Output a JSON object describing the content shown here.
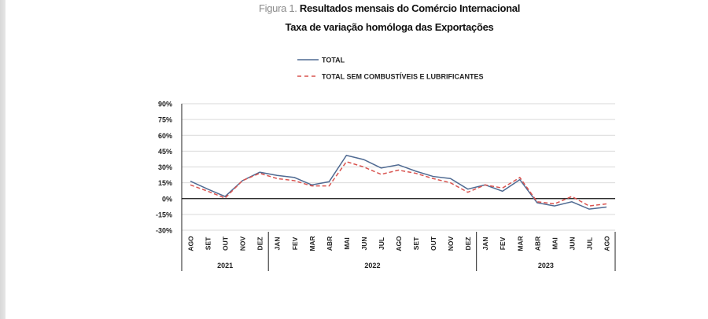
{
  "chart_data": {
    "type": "line",
    "figure_label": "Figura 1.",
    "title": "Resultados mensais do Comércio Internacional",
    "subtitle": "Taxa de variação homóloga das Exportações",
    "xlabel": "",
    "ylabel": "",
    "categories": [
      "AGO",
      "SET",
      "OUT",
      "NOV",
      "DEZ",
      "JAN",
      "FEV",
      "MAR",
      "ABR",
      "MAI",
      "JUN",
      "JUL",
      "AGO",
      "SET",
      "OUT",
      "NOV",
      "DEZ",
      "JAN",
      "FEV",
      "MAR",
      "ABR",
      "MAI",
      "JUN",
      "JUL",
      "AGO"
    ],
    "year_groups": [
      {
        "label": "2021",
        "count": 5
      },
      {
        "label": "2022",
        "count": 12
      },
      {
        "label": "2023",
        "count": 8
      }
    ],
    "yticks": [
      "90%",
      "75%",
      "60%",
      "45%",
      "30%",
      "15%",
      "0%",
      "-15%",
      "-30%"
    ],
    "ylim": [
      -30,
      90
    ],
    "grid": true,
    "legend_position": "top",
    "series": [
      {
        "name": "TOTAL",
        "color": "#4f6a92",
        "style": "solid",
        "values": [
          16.5,
          9,
          2,
          17,
          25,
          22,
          20,
          13,
          16,
          41,
          37,
          29,
          32,
          26,
          21,
          19,
          9,
          13,
          7,
          18,
          -4,
          -7,
          -3,
          -10,
          -8
        ]
      },
      {
        "name": "TOTAL SEM COMBUSTÍVEIS E LUBRIFICANTES",
        "color": "#d9534f",
        "style": "dashed",
        "values": [
          13,
          7,
          0.5,
          17,
          24,
          19,
          17,
          12,
          12,
          35,
          30,
          23,
          27,
          24,
          19,
          15,
          6,
          13,
          10,
          20,
          -3,
          -5,
          2,
          -7,
          -5
        ]
      }
    ]
  }
}
